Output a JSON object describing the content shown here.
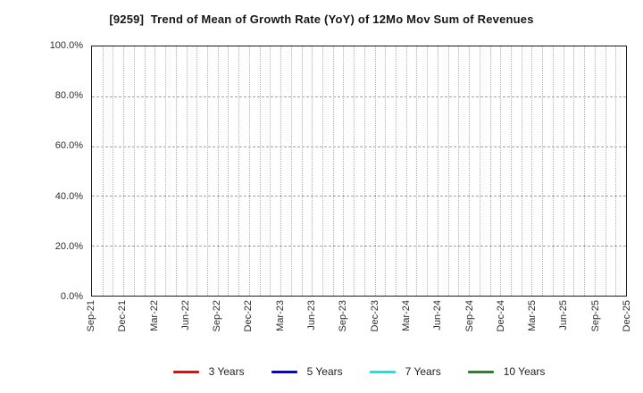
{
  "chart_data": {
    "type": "line",
    "title": "[9259]  Trend of Mean of Growth Rate (YoY) of 12Mo Mov Sum of Revenues",
    "xlabel": "",
    "ylabel": "",
    "ylim": [
      0,
      100
    ],
    "y_tick_values": [
      0,
      20,
      40,
      60,
      80,
      100
    ],
    "y_tick_labels": [
      "0.0%",
      "20.0%",
      "40.0%",
      "60.0%",
      "80.0%",
      "100.0%"
    ],
    "x_tick_labels": [
      "Sep-21",
      "Dec-21",
      "Mar-22",
      "Jun-22",
      "Sep-22",
      "Dec-22",
      "Mar-23",
      "Jun-23",
      "Sep-23",
      "Dec-23",
      "Mar-24",
      "Jun-24",
      "Sep-24",
      "Dec-24",
      "Mar-25",
      "Jun-25",
      "Sep-25",
      "Dec-25"
    ],
    "x_tick_interval_months": 3,
    "months_span": 51,
    "grid": {
      "vertical": "dotted gray line every month",
      "horizontal": "dashed gray line at each y tick between 0% and 100%"
    },
    "legend_position": "bottom center",
    "series": [
      {
        "name": "3 Years",
        "color": "#ff0000",
        "x": [],
        "values": []
      },
      {
        "name": "5 Years",
        "color": "#0000ee",
        "x": [],
        "values": []
      },
      {
        "name": "7 Years",
        "color": "#00eeee",
        "x": [],
        "values": []
      },
      {
        "name": "10 Years",
        "color": "#1f8b1f",
        "x": [],
        "values": []
      }
    ],
    "note": "plot area is empty - no data points are drawn for any series"
  }
}
